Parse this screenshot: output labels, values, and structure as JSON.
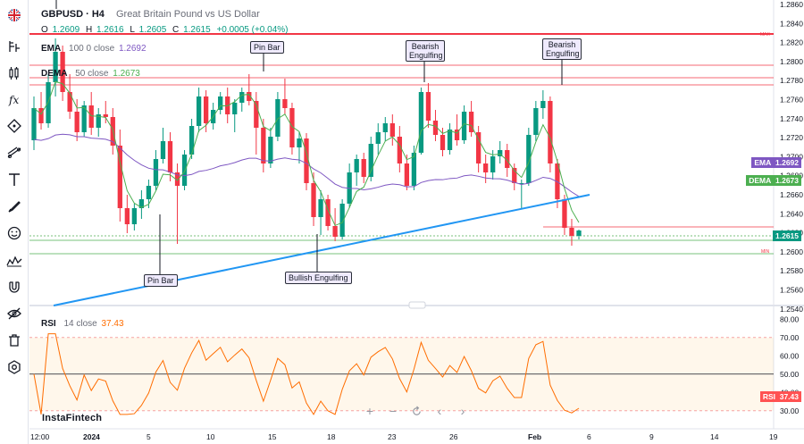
{
  "header": {
    "symbol": "GBPUSD · H4",
    "description": "Great Britain Pound vs US Dollar",
    "ohlc": {
      "o_label": "O",
      "o": "1.2609",
      "h_label": "H",
      "h": "1.2616",
      "l_label": "L",
      "l": "1.2605",
      "c_label": "C",
      "c": "1.2615",
      "change": "+0.0005 (+0.04%)"
    }
  },
  "indicators": {
    "ema": {
      "name": "EMA",
      "params": "100 0 close",
      "value": "1.2692",
      "color": "#7e57c2",
      "tag": "EMA",
      "tag_value": "1.2692"
    },
    "dema": {
      "name": "DEMA",
      "params": "50 close",
      "value": "1.2673",
      "color": "#4caf50",
      "tag": "DEMA",
      "tag_value": "1.2673"
    },
    "rsi": {
      "name": "RSI",
      "params": "14 close",
      "value": "37.43",
      "color": "#ff6d00",
      "tag": "RSI",
      "tag_value": "37.43"
    }
  },
  "price_tag": {
    "value": "1.2615",
    "color": "#089981"
  },
  "price_axis": {
    "ticks": [
      "1.2860",
      "1.2840",
      "1.2820",
      "1.2800",
      "1.2780",
      "1.2760",
      "1.2740",
      "1.2720",
      "1.2700",
      "1.2680",
      "1.2660",
      "1.2640",
      "1.2620",
      "1.2600",
      "1.2580",
      "1.2560",
      "1.2540"
    ],
    "max_label": "MAX",
    "min_label": "MIN"
  },
  "rsi_axis": {
    "ticks": [
      "80.00",
      "70.00",
      "60.00",
      "50.00",
      "40.00",
      "30.00"
    ]
  },
  "time_axis": {
    "ticks": [
      "12:00",
      "2024",
      "5",
      "10",
      "15",
      "18",
      "23",
      "26",
      "Feb",
      "6",
      "9",
      "14",
      "19"
    ]
  },
  "annotations": {
    "pin_bar_top": "Pin Bar",
    "pin_bar_bottom": "Pin Bar",
    "bearish_1": "Bearish Engulfing",
    "bearish_2": "Bearish Engulfing",
    "bullish": "Bullish Engulfing"
  },
  "watermark": "InstaFintech",
  "colors": {
    "bull": "#089981",
    "bear": "#f23645",
    "trendline": "#2196f3",
    "resistance": "#f23645",
    "support": "#4caf50"
  },
  "toolbar_icons": [
    "flag-icon",
    "chart-type-icon",
    "candles-icon",
    "fx-icon",
    "node-icon",
    "lines-icon",
    "text-icon",
    "brush-icon",
    "smiley-icon",
    "pattern-icon",
    "magnet-icon",
    "hide-icon",
    "trash-icon",
    "settings-icon"
  ],
  "chart_data": {
    "type": "candlestick",
    "title": "GBPUSD · H4",
    "ylim": [
      1.253,
      1.287
    ],
    "candles": [
      [
        1.2716,
        1.2765,
        1.2705,
        1.2752
      ],
      [
        1.2752,
        1.277,
        1.2728,
        1.2735
      ],
      [
        1.2735,
        1.279,
        1.273,
        1.2781
      ],
      [
        1.2781,
        1.283,
        1.2765,
        1.2815
      ],
      [
        1.2815,
        1.2822,
        1.276,
        1.277
      ],
      [
        1.277,
        1.279,
        1.274,
        1.2748
      ],
      [
        1.2748,
        1.2762,
        1.2715,
        1.2725
      ],
      [
        1.2725,
        1.276,
        1.272,
        1.2755
      ],
      [
        1.2755,
        1.277,
        1.2722,
        1.273
      ],
      [
        1.273,
        1.2752,
        1.272,
        1.2745
      ],
      [
        1.2745,
        1.276,
        1.2735,
        1.2742
      ],
      [
        1.2742,
        1.2752,
        1.27,
        1.271
      ],
      [
        1.271,
        1.2728,
        1.2625,
        1.264
      ],
      [
        1.264,
        1.2655,
        1.2612,
        1.2622
      ],
      [
        1.2622,
        1.2645,
        1.2615,
        1.264
      ],
      [
        1.264,
        1.266,
        1.2628,
        1.265
      ],
      [
        1.265,
        1.2672,
        1.264,
        1.2665
      ],
      [
        1.2665,
        1.2705,
        1.266,
        1.2695
      ],
      [
        1.2695,
        1.273,
        1.269,
        1.2715
      ],
      [
        1.2715,
        1.2725,
        1.267,
        1.268
      ],
      [
        1.268,
        1.269,
        1.26,
        1.2665
      ],
      [
        1.2665,
        1.2705,
        1.266,
        1.27
      ],
      [
        1.27,
        1.274,
        1.2695,
        1.2732
      ],
      [
        1.2732,
        1.2775,
        1.2725,
        1.2765
      ],
      [
        1.2765,
        1.2772,
        1.2725,
        1.2735
      ],
      [
        1.2735,
        1.2758,
        1.2728,
        1.275
      ],
      [
        1.275,
        1.277,
        1.2745,
        1.2765
      ],
      [
        1.2765,
        1.2775,
        1.2735,
        1.2745
      ],
      [
        1.2745,
        1.2762,
        1.2725,
        1.2758
      ],
      [
        1.2758,
        1.2775,
        1.2748,
        1.277
      ],
      [
        1.277,
        1.279,
        1.2755,
        1.276
      ],
      [
        1.276,
        1.277,
        1.27,
        1.273
      ],
      [
        1.273,
        1.274,
        1.268,
        1.269
      ],
      [
        1.269,
        1.273,
        1.2685,
        1.272
      ],
      [
        1.272,
        1.277,
        1.2715,
        1.2762
      ],
      [
        1.2762,
        1.2785,
        1.2745,
        1.2752
      ],
      [
        1.2752,
        1.2758,
        1.27,
        1.2708
      ],
      [
        1.2708,
        1.2725,
        1.269,
        1.2718
      ],
      [
        1.2718,
        1.2724,
        1.266,
        1.2668
      ],
      [
        1.2668,
        1.268,
        1.262,
        1.263
      ],
      [
        1.263,
        1.266,
        1.261,
        1.265
      ],
      [
        1.265,
        1.2655,
        1.2615,
        1.262
      ],
      [
        1.262,
        1.264,
        1.2603,
        1.2608
      ],
      [
        1.2608,
        1.265,
        1.2605,
        1.2645
      ],
      [
        1.2645,
        1.269,
        1.264,
        1.268
      ],
      [
        1.268,
        1.27,
        1.2665,
        1.2695
      ],
      [
        1.2695,
        1.2702,
        1.2668,
        1.2675
      ],
      [
        1.2675,
        1.272,
        1.267,
        1.2712
      ],
      [
        1.2712,
        1.2735,
        1.27,
        1.2725
      ],
      [
        1.2725,
        1.2742,
        1.2715,
        1.2735
      ],
      [
        1.2735,
        1.2745,
        1.271,
        1.272
      ],
      [
        1.272,
        1.2732,
        1.268,
        1.269
      ],
      [
        1.269,
        1.27,
        1.266,
        1.2665
      ],
      [
        1.2665,
        1.271,
        1.266,
        1.2702
      ],
      [
        1.2702,
        1.2775,
        1.27,
        1.277
      ],
      [
        1.277,
        1.278,
        1.273,
        1.2738
      ],
      [
        1.2738,
        1.275,
        1.2715,
        1.2722
      ],
      [
        1.2722,
        1.273,
        1.2698,
        1.2705
      ],
      [
        1.2705,
        1.2735,
        1.27,
        1.2728
      ],
      [
        1.2728,
        1.2745,
        1.271,
        1.2716
      ],
      [
        1.2716,
        1.2755,
        1.2712,
        1.2748
      ],
      [
        1.2748,
        1.276,
        1.272,
        1.2725
      ],
      [
        1.2725,
        1.2732,
        1.268,
        1.269
      ],
      [
        1.269,
        1.27,
        1.2668,
        1.268
      ],
      [
        1.268,
        1.2705,
        1.2672,
        1.2698
      ],
      [
        1.2698,
        1.2715,
        1.269,
        1.2705
      ],
      [
        1.2705,
        1.2712,
        1.2675,
        1.2685
      ],
      [
        1.2685,
        1.269,
        1.266,
        1.2668
      ],
      [
        1.2668,
        1.2672,
        1.264,
        1.2668
      ],
      [
        1.2668,
        1.273,
        1.2665,
        1.2722
      ],
      [
        1.2722,
        1.276,
        1.2715,
        1.2752
      ],
      [
        1.2752,
        1.2772,
        1.274,
        1.276
      ],
      [
        1.276,
        1.2765,
        1.268,
        1.269
      ],
      [
        1.269,
        1.2695,
        1.264,
        1.265
      ],
      [
        1.265,
        1.2655,
        1.261,
        1.2618
      ],
      [
        1.2618,
        1.2628,
        1.2598,
        1.2609
      ],
      [
        1.2609,
        1.2616,
        1.2605,
        1.2615
      ]
    ]
  }
}
